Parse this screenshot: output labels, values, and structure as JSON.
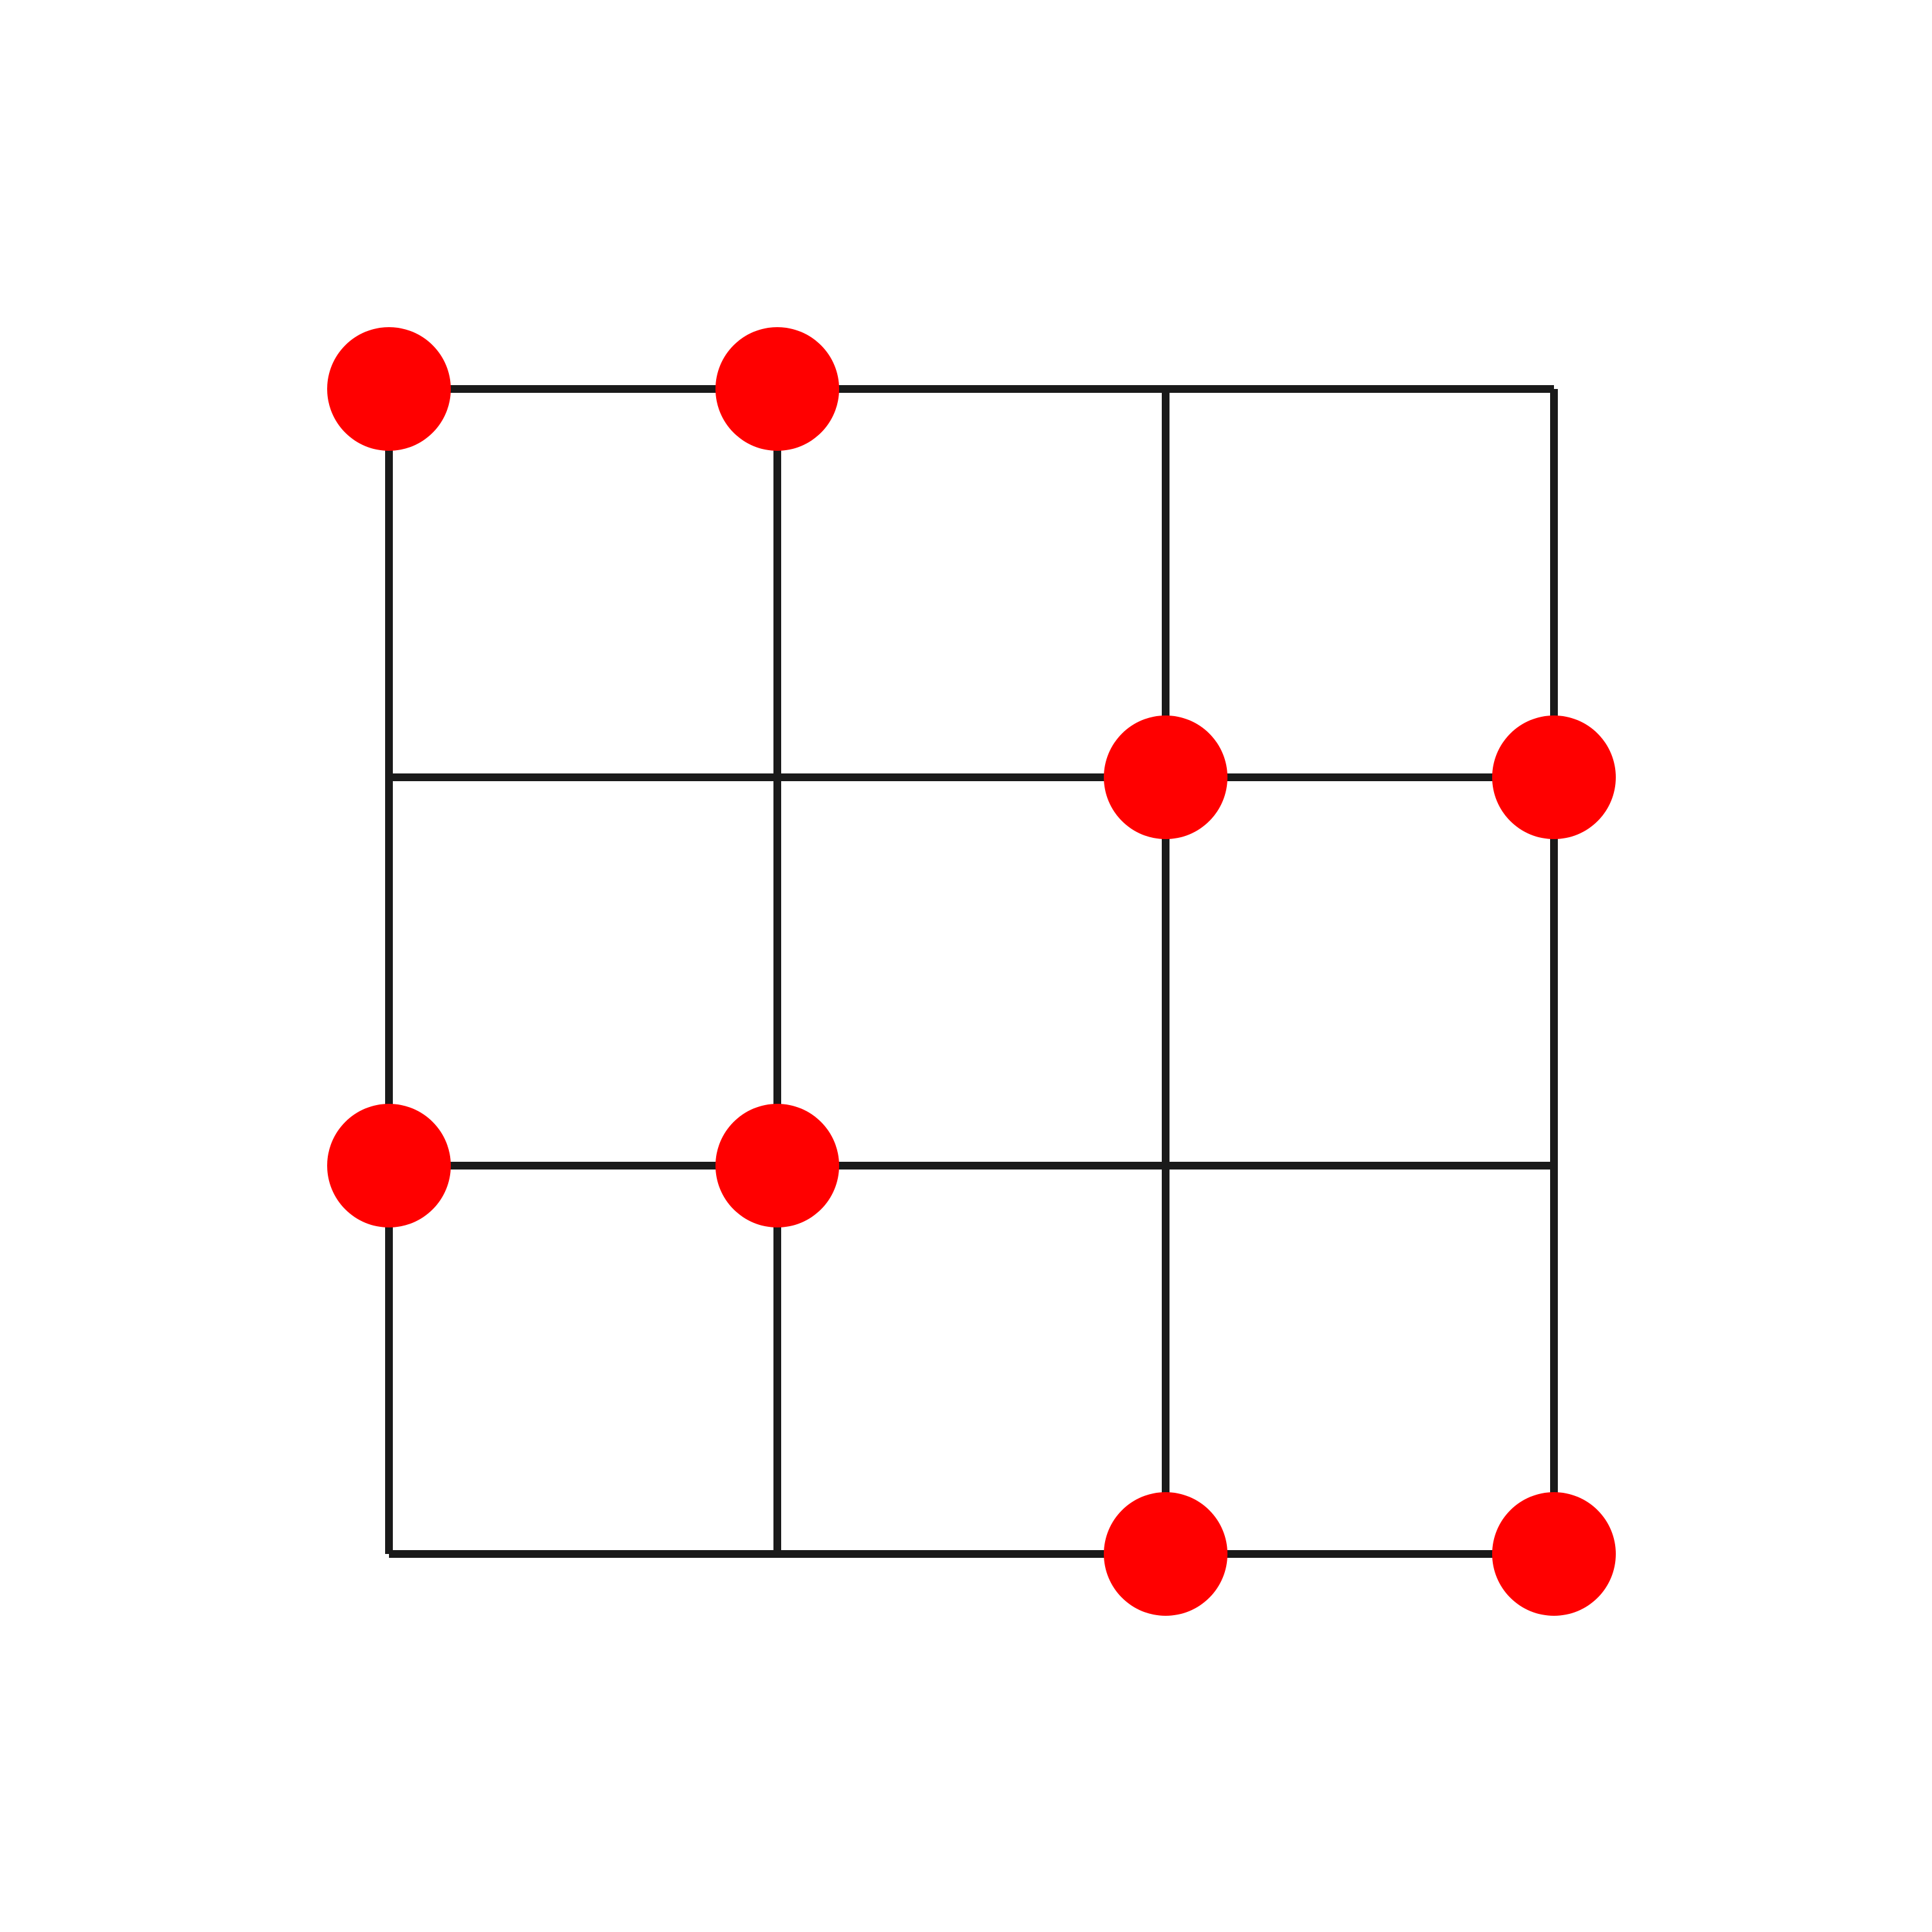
{
  "diagram": {
    "type": "lattice-grid",
    "rows": 4,
    "columns": 4,
    "line_color": "#1a1a1a",
    "marker_color": "#ff0000",
    "marked_nodes": [
      {
        "row": 0,
        "col": 0
      },
      {
        "row": 0,
        "col": 1
      },
      {
        "row": 1,
        "col": 2
      },
      {
        "row": 1,
        "col": 3
      },
      {
        "row": 2,
        "col": 0
      },
      {
        "row": 2,
        "col": 1
      },
      {
        "row": 3,
        "col": 2
      },
      {
        "row": 3,
        "col": 3
      }
    ]
  }
}
